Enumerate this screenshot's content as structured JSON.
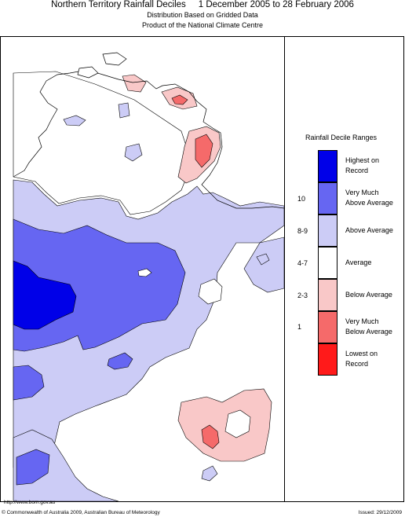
{
  "header": {
    "title": "Northern Territory Rainfall Deciles     1 December 2005 to 28 February 2006",
    "subtitle_1": "Distribution Based on Gridded Data",
    "subtitle_2": "Product of the National Climate Centre"
  },
  "legend": {
    "title": "Rainfall Decile Ranges",
    "items": [
      {
        "label_1": "Highest on",
        "label_2": "Record",
        "decile": "",
        "color": "#0000e8"
      },
      {
        "label_1": "Very Much",
        "label_2": "Above Average",
        "decile": "10",
        "color": "#6666f2"
      },
      {
        "label_1": "Above Average",
        "label_2": "",
        "decile": "8-9",
        "color": "#ccccf6"
      },
      {
        "label_1": "Average",
        "label_2": "",
        "decile": "4-7",
        "color": "#ffffff"
      },
      {
        "label_1": "Below Average",
        "label_2": "",
        "decile": "2-3",
        "color": "#f9c8c8"
      },
      {
        "label_1": "Very Much",
        "label_2": "Below Average",
        "decile": "1",
        "color": "#f56a6a"
      },
      {
        "label_1": "Lowest on",
        "label_2": "Record",
        "decile": "",
        "color": "#ff1a1a"
      }
    ]
  },
  "footer": {
    "url": "http://www.bom.gov.au",
    "copyright": "© Commonwealth of Australia 2009, Australian Bureau of Meteorology",
    "issued": "Issued: 29/12/2009"
  }
}
